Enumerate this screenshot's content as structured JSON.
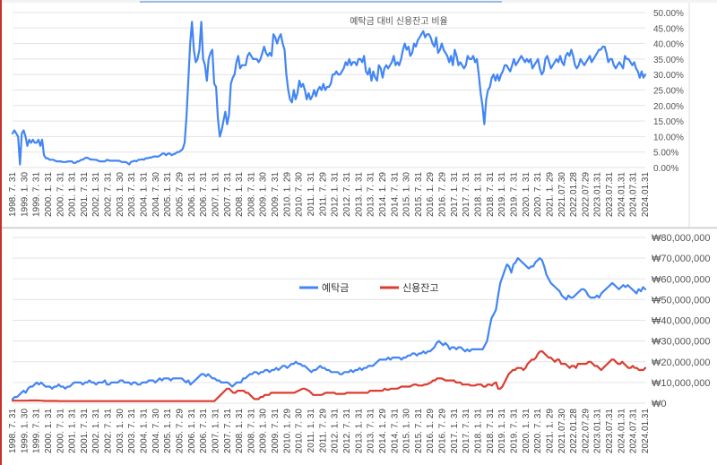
{
  "chart_data": [
    {
      "type": "line",
      "title": "예탁금 대비 신용잔고 비율",
      "x_tick_labels": [
        "1998. 7. 31",
        "1999. 1. 30",
        "1999. 7. 31",
        "2000. 1. 31",
        "2000. 7. 31",
        "2001. 1. 31",
        "2001. 7. 31",
        "2002. 1. 31",
        "2002. 7. 31",
        "2003. 1. 30",
        "2003. 7. 31",
        "2004. 1. 31",
        "2004. 7. 30",
        "2005. 1. 31",
        "2005. 7. 29",
        "2006. 1. 31",
        "2006. 7. 31",
        "2007. 1. 31",
        "2007. 7. 31",
        "2008. 1. 31",
        "2008. 7. 31",
        "2009. 1. 30",
        "2009. 7. 31",
        "2010. 1. 29",
        "2010. 7. 30",
        "2011. 1. 31",
        "2011. 7. 29",
        "2012. 1. 31",
        "2012. 7. 31",
        "2013. 1. 31",
        "2013. 7. 31",
        "2014. 1. 29",
        "2014. 7. 31",
        "2015. 1. 30",
        "2015. 7. 31",
        "2016. 1. 29",
        "2016. 7. 29",
        "2017. 1. 31",
        "2017. 7. 31",
        "2018. 1. 31",
        "2018. 7. 31",
        "2019. 1. 31",
        "2019. 7. 31",
        "2020. 1. 31",
        "2020. 7. 31",
        "2021. 1. 29",
        "2021.07.30",
        "2022.01.28",
        "2022.07.29",
        "2023.01.31",
        "2023.07.31",
        "2024.01.31",
        "2024.07.31",
        "2024.01.31"
      ],
      "y_tick_labels": [
        "50.00%",
        "45.00%",
        "40.00%",
        "35.00%",
        "30.00%",
        "25.00%",
        "20.00%",
        "15.00%",
        "10.00%",
        "5.00%",
        "0.00%"
      ],
      "ylim": [
        0,
        50
      ],
      "series": [
        {
          "color": "#4285f4",
          "values": [
            11,
            12,
            11,
            10,
            1,
            11,
            12,
            10,
            7,
            9,
            8,
            9,
            8,
            8,
            9,
            7,
            9,
            4,
            3,
            3,
            2.5,
            2.5,
            2.5,
            2.2,
            2,
            2,
            2,
            1.8,
            1.8,
            1.8,
            2,
            2,
            2,
            1.5,
            1.5,
            2,
            2,
            2.5,
            2.5,
            3,
            3.2,
            3,
            2.6,
            2.6,
            2.5,
            2.5,
            2.3,
            2,
            2,
            2,
            2,
            2.5,
            2.3,
            2.2,
            2.2,
            2.2,
            2.2,
            2.2,
            2.1,
            1.8,
            1.8,
            1.8,
            1.5,
            1,
            1.8,
            2,
            2.2,
            2,
            2.5,
            2.5,
            2.7,
            2.5,
            3,
            3,
            3.2,
            3.2,
            3.5,
            3.6,
            3.5,
            3.6,
            4,
            4.5,
            4.5,
            4,
            4.5,
            4.5,
            4,
            4.3,
            4.5,
            5,
            5,
            5.5,
            6,
            8,
            16,
            28,
            40,
            47,
            38,
            34,
            35,
            38,
            47,
            35,
            33,
            28,
            35,
            37,
            38,
            27,
            26,
            16,
            10,
            12,
            15,
            18,
            14,
            17,
            27,
            29,
            30,
            34,
            36,
            32,
            33,
            33,
            33,
            36,
            37,
            36,
            35,
            35,
            35,
            34,
            35,
            37,
            39,
            37,
            36,
            37,
            36,
            43,
            42,
            40,
            42,
            43,
            40,
            38,
            30,
            25,
            22,
            21,
            25,
            22,
            24,
            28,
            26,
            27,
            25,
            22,
            24,
            22,
            23,
            25,
            23,
            25,
            26,
            25,
            27,
            25,
            26,
            26,
            27,
            30,
            30,
            31,
            30,
            30,
            31,
            32,
            34,
            33,
            35,
            33,
            34,
            34,
            33,
            35,
            35,
            34,
            36,
            31,
            30,
            32,
            28,
            31,
            29,
            28,
            33,
            32,
            29,
            32,
            33,
            32,
            33,
            34,
            36,
            33,
            34,
            33,
            35,
            38,
            40,
            38,
            39,
            36,
            37,
            40,
            39,
            41,
            42,
            43,
            44,
            42,
            43,
            43,
            42,
            40,
            39,
            42,
            37,
            38,
            40,
            38,
            37,
            36,
            34,
            36,
            33,
            38,
            36,
            33,
            34,
            33,
            32,
            33,
            36,
            35,
            35,
            36,
            34,
            35,
            30,
            24,
            20,
            14,
            22,
            25,
            26,
            29,
            30,
            28,
            30,
            28,
            30,
            31,
            33,
            33,
            32,
            31,
            33,
            35,
            33,
            34,
            35,
            36,
            35,
            34,
            35,
            34,
            35,
            32,
            33,
            34,
            35,
            32,
            30,
            31,
            35,
            36,
            34,
            32,
            33,
            34,
            35,
            34,
            36,
            34,
            33,
            36,
            37,
            36,
            38,
            36,
            33,
            32,
            33,
            35,
            34,
            33,
            34,
            35,
            36,
            34,
            35,
            36,
            37,
            38,
            38,
            39,
            39,
            37,
            34,
            35,
            35,
            33,
            32,
            33,
            34,
            33,
            32,
            36,
            35,
            35,
            34,
            33,
            34,
            32,
            31,
            29,
            31,
            29,
            30
          ]
        }
      ]
    },
    {
      "type": "line",
      "x_tick_labels": [
        "1998. 7. 31",
        "1999. 1. 30",
        "1999. 7. 31",
        "2000. 1. 31",
        "2000. 7. 31",
        "2001. 1. 31",
        "2001. 7. 31",
        "2002. 1. 31",
        "2002. 7. 31",
        "2003. 1. 30",
        "2003. 7. 31",
        "2004. 1. 31",
        "2004. 7. 30",
        "2005. 1. 31",
        "2005. 7. 29",
        "2006. 1. 31",
        "2006. 7. 31",
        "2007. 1. 31",
        "2007. 7. 31",
        "2008. 1. 31",
        "2008. 7. 31",
        "2009. 1. 30",
        "2009. 7. 31",
        "2010. 1. 29",
        "2010. 7. 30",
        "2011. 1. 31",
        "2011. 7. 29",
        "2012. 1. 31",
        "2012. 7. 31",
        "2013. 1. 31",
        "2013. 7. 31",
        "2014. 1. 29",
        "2014. 7. 31",
        "2015. 1. 30",
        "2015. 7. 31",
        "2016. 1. 29",
        "2016. 7. 29",
        "2017. 1. 31",
        "2017. 7. 31",
        "2018. 1. 31",
        "2018. 7. 31",
        "2019. 1. 31",
        "2019. 7. 31",
        "2020. 1. 31",
        "2020. 7. 31",
        "2021. 1. 29",
        "2021.07.30",
        "2022.01.28",
        "2022.07.29",
        "2023.01.31",
        "2023.07.31",
        "2024.01.31",
        "2024.07.31",
        "2024.01.31"
      ],
      "y_tick_labels": [
        "₩80,000,000",
        "₩70,000,000",
        "₩60,000,000",
        "₩50,000,000",
        "₩40,000,000",
        "₩30,000,000",
        "₩20,000,000",
        "₩10,000,000",
        "₩0"
      ],
      "ylim": [
        0,
        80000000
      ],
      "legend_position": "top-center",
      "series": [
        {
          "name": "예탁금",
          "color": "#4285f4",
          "values": [
            2,
            3,
            3,
            4,
            5,
            6,
            5,
            7,
            8,
            8,
            9,
            10,
            9,
            10,
            9,
            8,
            8,
            8,
            7,
            8,
            8,
            9,
            8,
            8,
            7,
            8,
            8,
            9,
            10,
            10,
            10,
            10,
            9,
            10,
            10,
            11,
            10,
            10,
            9,
            10,
            10,
            10,
            11,
            9,
            9,
            10,
            10,
            10,
            10,
            11,
            11,
            10,
            10,
            10,
            9,
            10,
            10,
            9,
            9,
            10,
            10,
            10,
            11,
            11,
            11,
            10,
            11,
            12,
            11,
            12,
            12,
            12,
            11,
            12,
            12,
            12,
            12,
            12,
            11,
            10,
            11,
            9,
            10,
            11,
            12,
            13,
            14,
            14,
            13,
            14,
            13,
            12,
            12,
            11,
            11,
            10,
            10,
            10,
            10,
            9,
            8,
            9,
            10,
            10,
            10,
            12,
            12,
            13,
            14,
            14,
            15,
            15,
            14,
            15,
            15,
            16,
            16,
            15,
            16,
            16,
            17,
            16,
            17,
            18,
            18,
            17,
            18,
            19,
            19,
            20,
            19,
            19,
            18,
            18,
            17,
            16,
            15,
            16,
            16,
            17,
            18,
            17,
            17,
            16,
            16,
            15,
            15,
            15,
            15,
            14,
            14,
            15,
            15,
            15,
            16,
            15,
            16,
            16,
            17,
            16,
            17,
            17,
            18,
            18,
            18,
            19,
            20,
            21,
            21,
            21,
            21,
            22,
            21,
            22,
            22,
            22,
            22,
            21,
            22,
            22,
            23,
            23,
            24,
            24,
            23,
            24,
            24,
            25,
            24,
            25,
            25,
            26,
            27,
            29,
            30,
            29,
            28,
            29,
            28,
            26,
            27,
            27,
            26,
            27,
            27,
            26,
            25,
            26,
            25,
            26,
            26,
            26,
            26,
            26,
            26,
            28,
            30,
            36,
            41,
            43,
            45,
            52,
            58,
            61,
            64,
            67,
            66,
            63,
            67,
            68,
            70,
            69,
            68,
            67,
            66,
            65,
            66,
            66,
            68,
            69,
            70,
            69,
            66,
            62,
            60,
            58,
            57,
            56,
            55,
            54,
            52,
            51,
            50,
            52,
            51,
            51,
            52,
            53,
            54,
            55,
            55,
            54,
            52,
            51,
            51,
            51,
            52,
            51,
            53,
            54,
            55,
            56,
            57,
            58,
            57,
            56,
            55,
            56,
            57,
            56,
            57,
            56,
            55,
            54,
            53,
            55,
            54,
            56,
            55
          ]
        },
        {
          "name": "신용잔고",
          "color": "#db3c30",
          "values": [
            1.2,
            1.2,
            1.2,
            1.2,
            1.2,
            1.2,
            1.2,
            1.2,
            1.3,
            1.3,
            1.3,
            1.3,
            1.3,
            1.2,
            1.2,
            1.1,
            1.1,
            1.1,
            1.1,
            1.1,
            1.1,
            1.1,
            1,
            1,
            1,
            1,
            1,
            1,
            1,
            1,
            1,
            1,
            1,
            1,
            1,
            1,
            1,
            1,
            1,
            1,
            1,
            1,
            1,
            1,
            1,
            1,
            1,
            1,
            1,
            1,
            1,
            1,
            1,
            1,
            1,
            1,
            1,
            1,
            1,
            1,
            1,
            1,
            1,
            1,
            1,
            1,
            1,
            1,
            1,
            1,
            1,
            1,
            1,
            1,
            1,
            1,
            1,
            1,
            1,
            1,
            1,
            1,
            1,
            1,
            1,
            1,
            1,
            1,
            1,
            1,
            1,
            1,
            1,
            1,
            1,
            1,
            1,
            2,
            3,
            4,
            5,
            6,
            7,
            7,
            6,
            5,
            5,
            6,
            6,
            6,
            6,
            5,
            5,
            4,
            3,
            2,
            2,
            2,
            3,
            3,
            4,
            4,
            4,
            5,
            5,
            5,
            5,
            5,
            5,
            5,
            5,
            5,
            5,
            5,
            5,
            5.5,
            6,
            6.5,
            7,
            7,
            6.5,
            6,
            5,
            4,
            4,
            4,
            4,
            4,
            4.5,
            5,
            5,
            5,
            5,
            5,
            4.5,
            4.5,
            4.5,
            4.5,
            4.5,
            5,
            5,
            5,
            5,
            5,
            5,
            5,
            5,
            5,
            5,
            5,
            6,
            6,
            6,
            6,
            6,
            6,
            6,
            7,
            6.5,
            6.5,
            7,
            7,
            7,
            7,
            7.5,
            8,
            8,
            8,
            8,
            8,
            8.5,
            9,
            9,
            8.5,
            8.5,
            8.5,
            9,
            9,
            9.5,
            10,
            11,
            11,
            12,
            12,
            12,
            11.5,
            11,
            11,
            11,
            11,
            11,
            10,
            10,
            10,
            9,
            9,
            9,
            9,
            8.5,
            8.5,
            8.5,
            9,
            9,
            9,
            8,
            8,
            9,
            9,
            8.5,
            9.5,
            10,
            7,
            7,
            8,
            10,
            12,
            14,
            15,
            16,
            16,
            17,
            17,
            17,
            16,
            17,
            19,
            20,
            21,
            21,
            22,
            24,
            25,
            25,
            24,
            23,
            22,
            22,
            21,
            20,
            21,
            21,
            19,
            19,
            19,
            18,
            17,
            18,
            18,
            17,
            19,
            19,
            19,
            19,
            19,
            20,
            20,
            19,
            18,
            18,
            17,
            16,
            17,
            18,
            19,
            20,
            21,
            21,
            20,
            19,
            19,
            20,
            19,
            18,
            17,
            17,
            18,
            17,
            17,
            16,
            16,
            16,
            17
          ]
        }
      ]
    }
  ]
}
